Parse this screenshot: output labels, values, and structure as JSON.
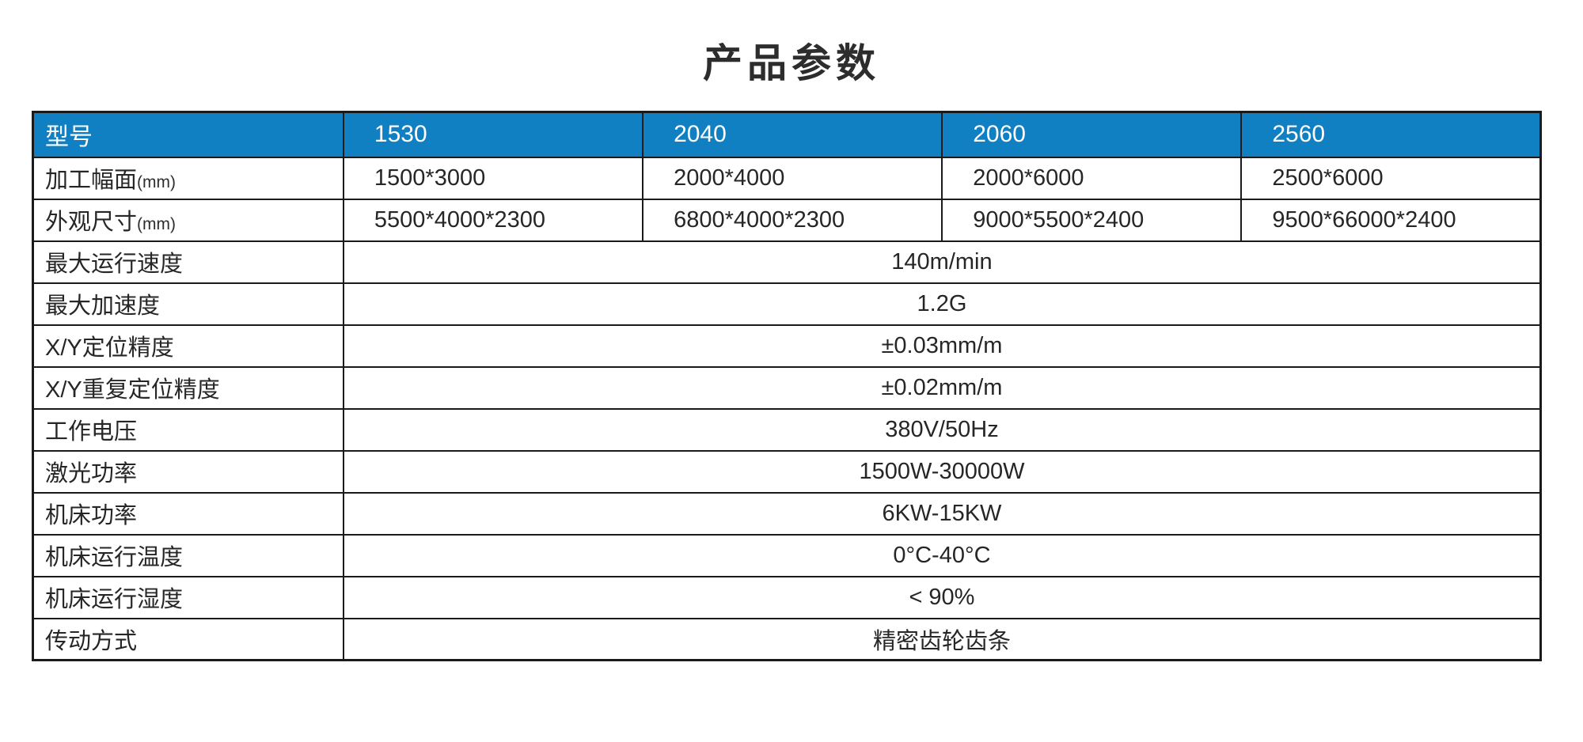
{
  "title": "产品参数",
  "colors": {
    "header_bg": "#1180c2",
    "header_text": "#ffffff",
    "border": "#1a1a1a",
    "body_text": "#262626"
  },
  "table": {
    "header": {
      "label": "型号",
      "models": [
        "1530",
        "2040",
        "2060",
        "2560"
      ]
    },
    "rows": [
      {
        "label": "加工幅面",
        "label_suffix": "(mm)",
        "values": [
          "1500*3000",
          "2000*4000",
          "2000*6000",
          "2500*6000"
        ]
      },
      {
        "label": "外观尺寸",
        "label_suffix": "(mm)",
        "values": [
          "5500*4000*2300",
          "6800*4000*2300",
          "9000*5500*2400",
          "9500*66000*2400"
        ]
      },
      {
        "label": "最大运行速度",
        "span_value": "140m/min"
      },
      {
        "label": "最大加速度",
        "span_value": "1.2G"
      },
      {
        "label": "X/Y定位精度",
        "span_value": "±0.03mm/m"
      },
      {
        "label": "X/Y重复定位精度",
        "span_value": "±0.02mm/m"
      },
      {
        "label": "工作电压",
        "span_value": "380V/50Hz"
      },
      {
        "label": "激光功率",
        "span_value": "1500W-30000W"
      },
      {
        "label": "机床功率",
        "span_value": "6KW-15KW"
      },
      {
        "label": "机床运行温度",
        "span_value": "0°C-40°C"
      },
      {
        "label": "机床运行湿度",
        "span_value": "< 90%"
      },
      {
        "label": "传动方式",
        "span_value": "精密齿轮齿条"
      }
    ]
  }
}
